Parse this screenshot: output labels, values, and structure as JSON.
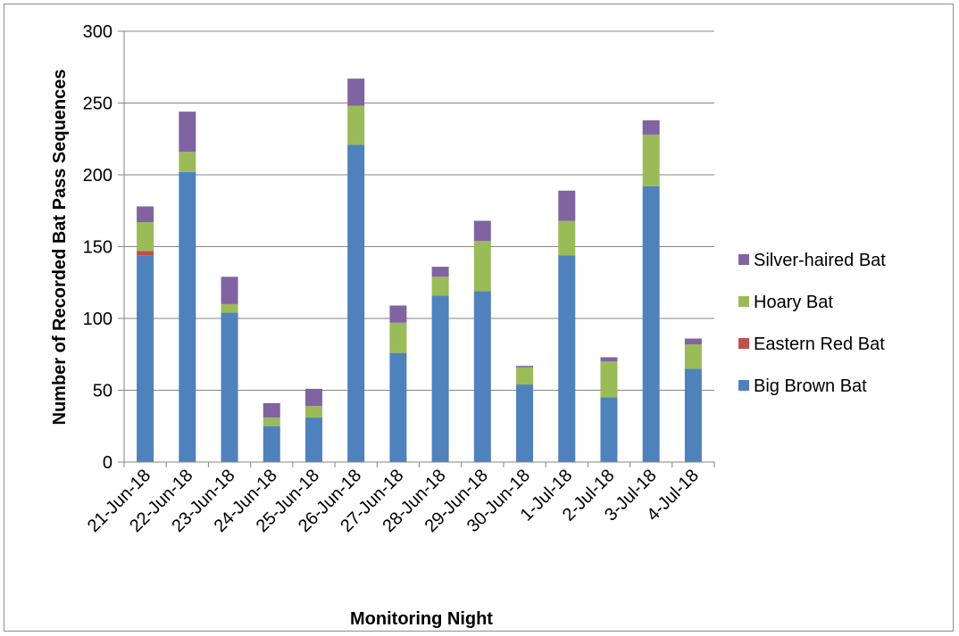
{
  "chart_data": {
    "type": "bar",
    "stacked": true,
    "title": "",
    "xlabel": "Monitoring Night",
    "ylabel": "Number of Recorded Bat Pass Sequences",
    "ylim": [
      0,
      300
    ],
    "yticks": [
      0,
      50,
      100,
      150,
      200,
      250,
      300
    ],
    "grid": true,
    "legend_position": "right",
    "categories": [
      "21-Jun-18",
      "22-Jun-18",
      "23-Jun-18",
      "24-Jun-18",
      "25-Jun-18",
      "26-Jun-18",
      "27-Jun-18",
      "28-Jun-18",
      "29-Jun-18",
      "30-Jun-18",
      "1-Jul-18",
      "2-Jul-18",
      "3-Jul-18",
      "4-Jul-18"
    ],
    "series": [
      {
        "name": "Big Brown Bat",
        "color": "#4f81bd",
        "values": [
          144,
          202,
          104,
          25,
          31,
          221,
          76,
          116,
          119,
          54,
          144,
          45,
          192,
          65
        ]
      },
      {
        "name": "Eastern Red Bat",
        "color": "#c0504d",
        "values": [
          3,
          0,
          0,
          0,
          0,
          0,
          0,
          0,
          0,
          0,
          0,
          0,
          0,
          0
        ]
      },
      {
        "name": "Hoary Bat",
        "color": "#9bbb59",
        "values": [
          20,
          14,
          6,
          6,
          8,
          27,
          21,
          13,
          35,
          12,
          24,
          25,
          36,
          17
        ]
      },
      {
        "name": "Silver-haired Bat",
        "color": "#8064a2",
        "values": [
          11,
          28,
          19,
          10,
          12,
          19,
          12,
          7,
          14,
          1,
          21,
          3,
          10,
          4
        ]
      }
    ]
  }
}
